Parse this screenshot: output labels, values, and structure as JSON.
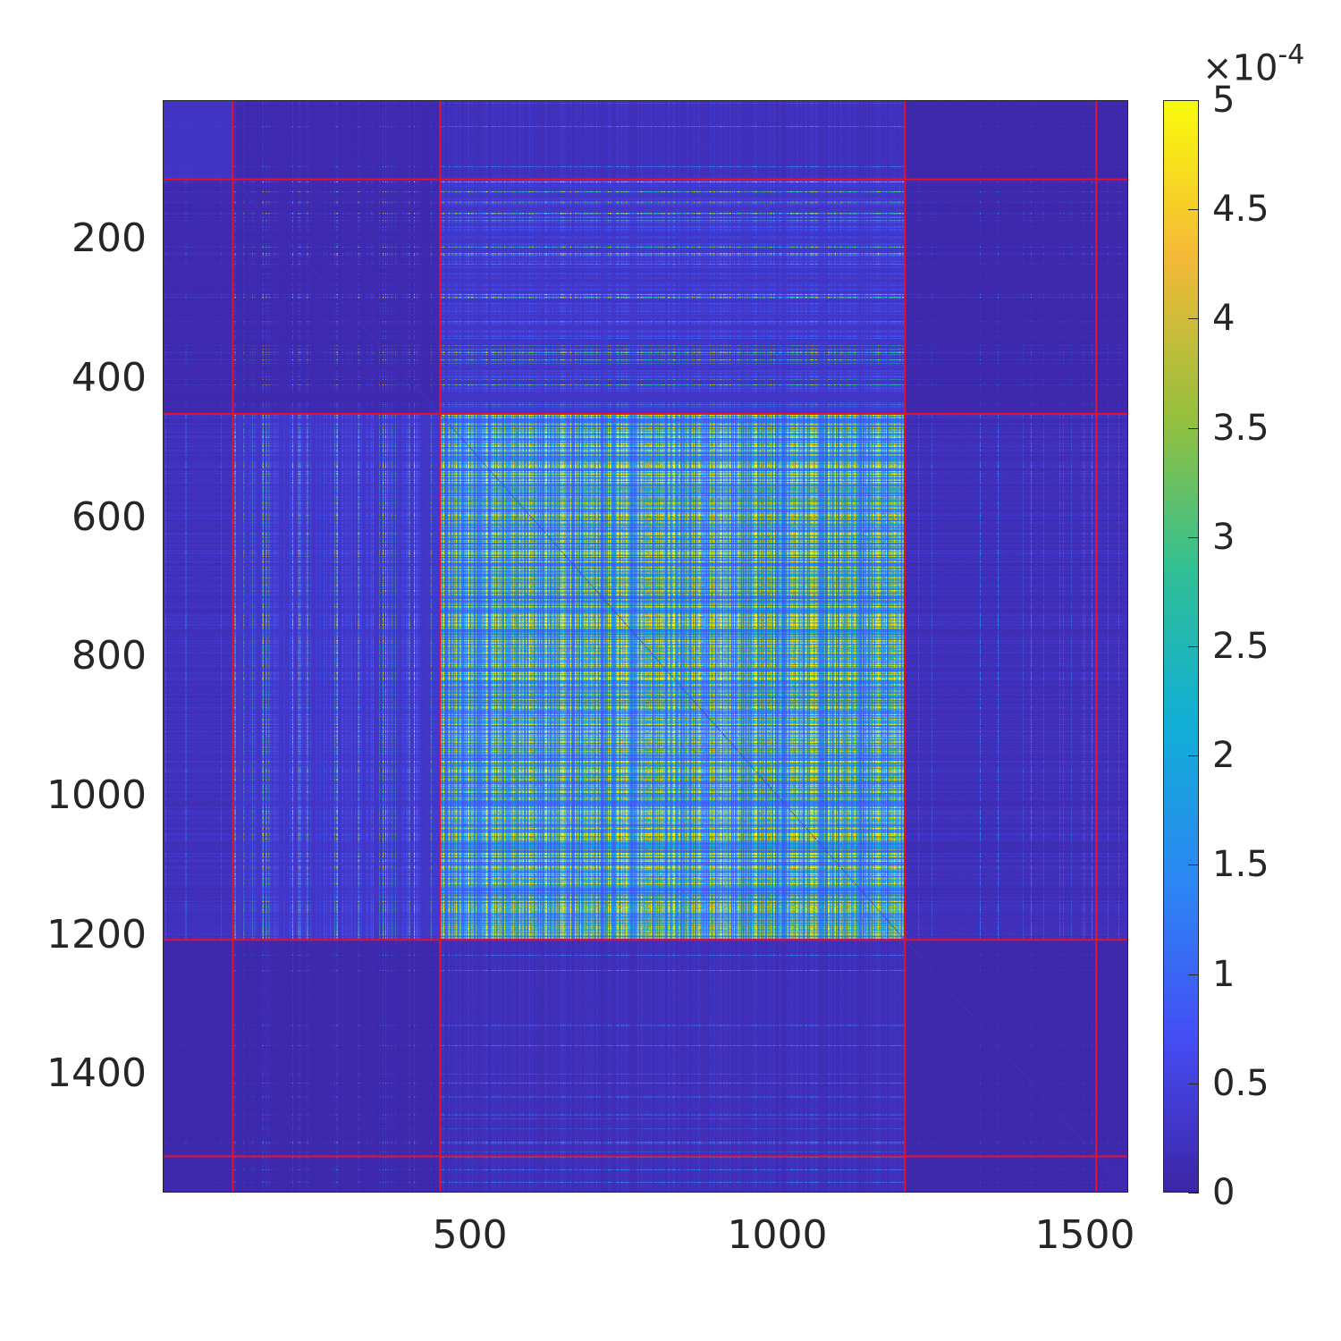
{
  "chart_data": {
    "type": "heatmap",
    "title": "",
    "xlabel": "",
    "ylabel": "",
    "matrix_size": 1570,
    "xlim": [
      0.5,
      1570.5
    ],
    "ylim": [
      0.5,
      1570.5
    ],
    "xticks": [
      500,
      1000,
      1500
    ],
    "xtick_labels": [
      "500",
      "1000",
      "1500"
    ],
    "yticks": [
      200,
      400,
      600,
      800,
      1000,
      1200,
      1400
    ],
    "ytick_labels": [
      "200",
      "400",
      "600",
      "800",
      "1000",
      "1200",
      "1400"
    ],
    "colormap": "parula",
    "clim": [
      0,
      0.0005
    ],
    "colorbar": {
      "ticks": [
        0,
        0.5,
        1,
        1.5,
        2,
        2.5,
        3,
        3.5,
        4,
        4.5,
        5
      ],
      "tick_labels": [
        "0",
        "0.5",
        "1",
        "1.5",
        "2",
        "2.5",
        "3",
        "3.5",
        "4",
        "4.5",
        "5"
      ],
      "multiplier": "×10",
      "exponent": "-4",
      "location": "right"
    },
    "group_boundaries": [
      113,
      450,
      1206,
      1517
    ],
    "boundary_line_color": "#e8102a",
    "block_mean_levels_x1e-4": [
      [
        0.8,
        0.2,
        0.4,
        0.1,
        0.1
      ],
      [
        0.2,
        0.2,
        0.9,
        0.1,
        0.1
      ],
      [
        0.4,
        0.9,
        2.2,
        0.3,
        0.3
      ],
      [
        0.1,
        0.1,
        0.3,
        0.1,
        0.1
      ],
      [
        0.1,
        0.1,
        0.3,
        0.1,
        0.2
      ]
    ]
  }
}
